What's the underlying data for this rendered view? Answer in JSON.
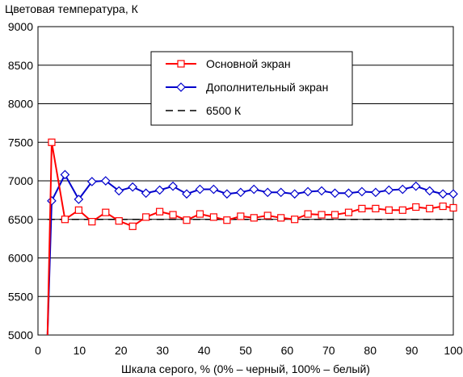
{
  "chart_data": {
    "type": "line",
    "ylabel": "Цветовая температура, К",
    "xlabel": "Шкала серого, % (0% – черный, 100% – белый)",
    "xlim": [
      0,
      100
    ],
    "ylim": [
      5000,
      9000
    ],
    "xticks": [
      "0",
      "10",
      "20",
      "30",
      "40",
      "50",
      "60",
      "70",
      "80",
      "90",
      "100"
    ],
    "yticks": [
      "5000",
      "5500",
      "6000",
      "6500",
      "7000",
      "7500",
      "8000",
      "8500",
      "9000"
    ],
    "grid": "horizontal",
    "legend": "top-center",
    "series": [
      {
        "name": "Основной экран",
        "color": "#ff0000",
        "marker": "square",
        "x": [
          2.3,
          3.3,
          6.5,
          9.8,
          13,
          16.3,
          19.5,
          22.8,
          26,
          29.3,
          32.5,
          35.8,
          39,
          42.3,
          45.5,
          48.8,
          52,
          55.3,
          58.5,
          61.8,
          65,
          68.3,
          71.5,
          74.8,
          78,
          81.3,
          84.5,
          87.8,
          91,
          94.3,
          97.5,
          100
        ],
        "y": [
          5000,
          7500,
          6500,
          6620,
          6470,
          6590,
          6480,
          6410,
          6530,
          6600,
          6560,
          6490,
          6570,
          6530,
          6490,
          6540,
          6520,
          6550,
          6520,
          6500,
          6570,
          6560,
          6560,
          6590,
          6640,
          6640,
          6620,
          6620,
          6660,
          6640,
          6670,
          6650
        ]
      },
      {
        "name": "Дополнительный экран",
        "color": "#0000cc",
        "marker": "diamond",
        "x": [
          2.3,
          3.3,
          6.5,
          9.8,
          13,
          16.3,
          19.5,
          22.8,
          26,
          29.3,
          32.5,
          35.8,
          39,
          42.3,
          45.5,
          48.8,
          52,
          55.3,
          58.5,
          61.8,
          65,
          68.3,
          71.5,
          74.8,
          78,
          81.3,
          84.5,
          87.8,
          91,
          94.3,
          97.5,
          100
        ],
        "y": [
          5000,
          6740,
          7080,
          6760,
          6990,
          7000,
          6870,
          6920,
          6840,
          6880,
          6930,
          6830,
          6890,
          6890,
          6830,
          6850,
          6890,
          6850,
          6850,
          6830,
          6860,
          6870,
          6840,
          6840,
          6860,
          6850,
          6880,
          6890,
          6930,
          6870,
          6830,
          6830
        ]
      },
      {
        "name": "6500 К",
        "color": "#000000",
        "marker": "none",
        "dashed": true,
        "x": [
          2.3,
          100
        ],
        "y": [
          6500,
          6500
        ]
      }
    ]
  }
}
